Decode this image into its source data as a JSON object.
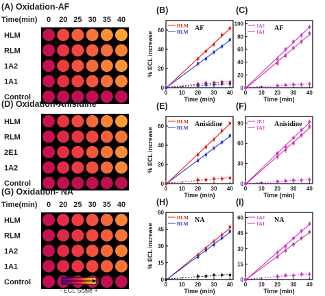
{
  "arrays": [
    {
      "label": "(A) Oxidation-AF",
      "time_label": "Time(min)",
      "times": [
        "0",
        "20",
        "25",
        "30",
        "35",
        "40"
      ],
      "rows": [
        "HLM",
        "RLM",
        "1A2",
        "1A1",
        "Control"
      ],
      "intensity": [
        [
          0.15,
          0.55,
          0.65,
          0.75,
          0.85,
          0.95
        ],
        [
          0.15,
          0.45,
          0.55,
          0.65,
          0.72,
          0.8
        ],
        [
          0.15,
          0.5,
          0.6,
          0.7,
          0.8,
          0.88
        ],
        [
          0.15,
          0.42,
          0.52,
          0.62,
          0.72,
          0.82
        ],
        [
          0.12,
          0.12,
          0.13,
          0.12,
          0.13,
          0.12
        ]
      ]
    },
    {
      "label": "(D) Oxidation-Anisidine",
      "time_label": "",
      "times": [],
      "rows": [
        "HLM",
        "RLM",
        "2E1",
        "1A2",
        "Control"
      ],
      "intensity": [
        [
          0.15,
          0.45,
          0.55,
          0.7,
          0.8,
          0.92
        ],
        [
          0.15,
          0.35,
          0.45,
          0.55,
          0.65,
          0.75
        ],
        [
          0.15,
          0.4,
          0.5,
          0.62,
          0.75,
          0.85
        ],
        [
          0.15,
          0.38,
          0.48,
          0.58,
          0.7,
          0.82
        ],
        [
          0.12,
          0.12,
          0.12,
          0.13,
          0.12,
          0.12
        ]
      ]
    },
    {
      "label": "(G) Oxidation- NA",
      "time_label": "Time(min)",
      "times": [
        "0",
        "20",
        "25",
        "30",
        "35",
        "40"
      ],
      "rows": [
        "HLM",
        "RLM",
        "1A2",
        "1A1",
        "Control"
      ],
      "intensity": [
        [
          0.15,
          0.4,
          0.5,
          0.6,
          0.7,
          0.82
        ],
        [
          0.15,
          0.35,
          0.45,
          0.55,
          0.65,
          0.75
        ],
        [
          0.15,
          0.38,
          0.48,
          0.6,
          0.7,
          0.8
        ],
        [
          0.15,
          0.35,
          0.45,
          0.55,
          0.65,
          0.75
        ],
        [
          0.12,
          0.12,
          0.12,
          0.12,
          0.12,
          0.12
        ]
      ]
    }
  ],
  "scale_label": "- ECL Scale +",
  "colors": {
    "hlm": "#e02020",
    "rlm": "#1f3ccc",
    "cyp_a": "#d030d0",
    "cyp_b": "#cc33a0",
    "spot_low": "#b0005a",
    "spot_high": "#ffb030"
  },
  "chart_data": [
    {
      "panel": "(B)",
      "type": "line",
      "annotation": "AF",
      "xlabel": "Time (min)",
      "ylabel": "% ECL increase",
      "xlim": [
        0,
        42
      ],
      "ylim": [
        0,
        70
      ],
      "xticks": [
        0,
        10,
        20,
        30,
        40
      ],
      "yticks": [
        0,
        20,
        40,
        60
      ],
      "series": [
        {
          "name": "HLM",
          "color": "#e02020",
          "x": [
            0,
            20,
            25,
            30,
            35,
            40
          ],
          "y": [
            0,
            30,
            38,
            45,
            55,
            62
          ]
        },
        {
          "name": "RLM",
          "color": "#1f3ccc",
          "x": [
            0,
            20,
            25,
            30,
            35,
            40
          ],
          "y": [
            0,
            25,
            30,
            37,
            43,
            50
          ]
        },
        {
          "name": "",
          "color": "#e02020",
          "dotted": true,
          "x": [
            0,
            20,
            25,
            30,
            35,
            40
          ],
          "y": [
            0,
            4,
            5,
            5,
            6,
            6
          ]
        },
        {
          "name": "",
          "color": "#1f3ccc",
          "dotted": true,
          "x": [
            0,
            20,
            25,
            30,
            35,
            40
          ],
          "y": [
            0,
            2,
            3,
            3,
            4,
            4
          ]
        }
      ]
    },
    {
      "panel": "(C)",
      "type": "line",
      "annotation": "AF",
      "xlabel": "Time (min)",
      "ylabel": "",
      "xlim": [
        0,
        42
      ],
      "ylim": [
        0,
        105
      ],
      "xticks": [
        0,
        10,
        20,
        30,
        40
      ],
      "yticks": [
        0,
        20,
        40,
        60,
        80,
        100
      ],
      "series": [
        {
          "name": "1A2",
          "color": "#d030d0",
          "x": [
            0,
            20,
            25,
            30,
            35,
            40
          ],
          "y": [
            0,
            45,
            60,
            72,
            82,
            95
          ]
        },
        {
          "name": "1A1",
          "color": "#cc33a0",
          "x": [
            0,
            20,
            25,
            30,
            35,
            40
          ],
          "y": [
            0,
            38,
            50,
            62,
            72,
            85
          ]
        },
        {
          "name": "",
          "color": "#d030d0",
          "dotted": true,
          "x": [
            0,
            20,
            25,
            30,
            35,
            40
          ],
          "y": [
            0,
            3,
            4,
            5,
            5,
            6
          ]
        }
      ]
    },
    {
      "panel": "(E)",
      "type": "line",
      "annotation": "Anisidine",
      "xlabel": "Time (min)",
      "ylabel": "% ECL increase",
      "xlim": [
        0,
        42
      ],
      "ylim": [
        0,
        70
      ],
      "xticks": [
        0,
        10,
        20,
        30,
        40
      ],
      "yticks": [
        0,
        20,
        40,
        60
      ],
      "series": [
        {
          "name": "HLM",
          "color": "#e02020",
          "x": [
            0,
            20,
            25,
            30,
            35,
            40
          ],
          "y": [
            0,
            30,
            38,
            46,
            55,
            63
          ]
        },
        {
          "name": "RLM",
          "color": "#1f3ccc",
          "x": [
            0,
            20,
            25,
            30,
            35,
            40
          ],
          "y": [
            0,
            24,
            30,
            37,
            43,
            50
          ]
        },
        {
          "name": "",
          "color": "#e02020",
          "dotted": true,
          "x": [
            0,
            20,
            25,
            30,
            35,
            40
          ],
          "y": [
            0,
            4,
            4,
            5,
            5,
            6
          ]
        }
      ]
    },
    {
      "panel": "(F)",
      "type": "line",
      "annotation": "Anisidine",
      "xlabel": "Time (min)",
      "ylabel": "",
      "xlim": [
        0,
        42
      ],
      "ylim": [
        0,
        100
      ],
      "xticks": [
        0,
        10,
        20,
        30,
        40
      ],
      "yticks": [
        0,
        30,
        60,
        90
      ],
      "series": [
        {
          "name": "2E1",
          "color": "#d030d0",
          "x": [
            0,
            20,
            25,
            30,
            35,
            40
          ],
          "y": [
            0,
            45,
            55,
            68,
            80,
            92
          ]
        },
        {
          "name": "1A2",
          "color": "#cc33a0",
          "x": [
            0,
            20,
            25,
            30,
            35,
            40
          ],
          "y": [
            0,
            40,
            50,
            60,
            72,
            85
          ]
        },
        {
          "name": "",
          "color": "#d030d0",
          "dotted": true,
          "x": [
            0,
            20,
            25,
            30,
            35,
            40
          ],
          "y": [
            0,
            3,
            4,
            5,
            5,
            6
          ]
        }
      ]
    },
    {
      "panel": "(H)",
      "type": "line",
      "annotation": "NA",
      "xlabel": "Time (min)",
      "ylabel": "% ECL increase",
      "xlim": [
        0,
        42
      ],
      "ylim": [
        0,
        60
      ],
      "xticks": [
        0,
        10,
        20,
        30,
        40
      ],
      "yticks": [
        0,
        15,
        30,
        45,
        60
      ],
      "series": [
        {
          "name": "HLM",
          "color": "#e02020",
          "x": [
            0,
            20,
            25,
            30,
            35,
            40
          ],
          "y": [
            0,
            22,
            28,
            34,
            40,
            47
          ]
        },
        {
          "name": "RLM",
          "color": "#1f3ccc",
          "x": [
            0,
            20,
            25,
            30,
            35,
            40
          ],
          "y": [
            0,
            20,
            26,
            31,
            37,
            43
          ]
        },
        {
          "name": "",
          "color": "#222222",
          "dotted": true,
          "x": [
            0,
            20,
            25,
            30,
            35,
            40
          ],
          "y": [
            0,
            3,
            3,
            4,
            4,
            4
          ]
        }
      ]
    },
    {
      "panel": "(I)",
      "type": "line",
      "annotation": "NA",
      "xlabel": "Time (min)",
      "ylabel": "",
      "xlim": [
        0,
        42
      ],
      "ylim": [
        0,
        65
      ],
      "xticks": [
        0,
        10,
        20,
        30,
        40
      ],
      "yticks": [
        0,
        15,
        30,
        45,
        60
      ],
      "series": [
        {
          "name": "1A2",
          "color": "#d030d0",
          "x": [
            0,
            20,
            25,
            30,
            35,
            40
          ],
          "y": [
            0,
            26,
            32,
            40,
            47,
            54
          ]
        },
        {
          "name": "1A1",
          "color": "#cc33a0",
          "x": [
            0,
            20,
            25,
            30,
            35,
            40
          ],
          "y": [
            0,
            22,
            28,
            34,
            40,
            46
          ]
        },
        {
          "name": "",
          "color": "#d030d0",
          "dotted": true,
          "x": [
            0,
            20,
            25,
            30,
            35,
            40
          ],
          "y": [
            0,
            3,
            4,
            4,
            5,
            5
          ]
        }
      ]
    }
  ]
}
